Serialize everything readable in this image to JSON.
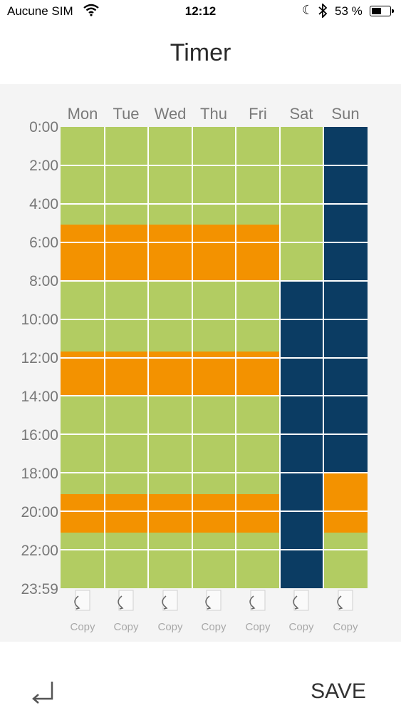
{
  "status_bar": {
    "carrier": "Aucune SIM",
    "time": "12:12",
    "battery_percent": "53 %",
    "battery_level": 0.53
  },
  "header": {
    "title": "Timer"
  },
  "schedule": {
    "days": [
      "Mon",
      "Tue",
      "Wed",
      "Thu",
      "Fri",
      "Sat",
      "Sun"
    ],
    "time_labels": [
      "0:00",
      "2:00",
      "4:00",
      "6:00",
      "8:00",
      "10:00",
      "12:00",
      "14:00",
      "16:00",
      "18:00",
      "20:00",
      "22:00",
      "23:59"
    ],
    "colors": {
      "comfort": "#b2cc62",
      "eco": "#f39200",
      "off": "#0b3c63"
    },
    "mode_blocks": [
      [
        {
          "start": 0,
          "end": 5.1,
          "mode": "comfort"
        },
        {
          "start": 5.1,
          "end": 8,
          "mode": "eco"
        },
        {
          "start": 8,
          "end": 11.7,
          "mode": "comfort"
        },
        {
          "start": 11.7,
          "end": 14,
          "mode": "eco"
        },
        {
          "start": 14,
          "end": 19.1,
          "mode": "comfort"
        },
        {
          "start": 19.1,
          "end": 21.1,
          "mode": "eco"
        },
        {
          "start": 21.1,
          "end": 24,
          "mode": "comfort"
        }
      ],
      [
        {
          "start": 0,
          "end": 5.1,
          "mode": "comfort"
        },
        {
          "start": 5.1,
          "end": 8,
          "mode": "eco"
        },
        {
          "start": 8,
          "end": 11.7,
          "mode": "comfort"
        },
        {
          "start": 11.7,
          "end": 14,
          "mode": "eco"
        },
        {
          "start": 14,
          "end": 19.1,
          "mode": "comfort"
        },
        {
          "start": 19.1,
          "end": 21.1,
          "mode": "eco"
        },
        {
          "start": 21.1,
          "end": 24,
          "mode": "comfort"
        }
      ],
      [
        {
          "start": 0,
          "end": 5.1,
          "mode": "comfort"
        },
        {
          "start": 5.1,
          "end": 8,
          "mode": "eco"
        },
        {
          "start": 8,
          "end": 11.7,
          "mode": "comfort"
        },
        {
          "start": 11.7,
          "end": 14,
          "mode": "eco"
        },
        {
          "start": 14,
          "end": 19.1,
          "mode": "comfort"
        },
        {
          "start": 19.1,
          "end": 21.1,
          "mode": "eco"
        },
        {
          "start": 21.1,
          "end": 24,
          "mode": "comfort"
        }
      ],
      [
        {
          "start": 0,
          "end": 5.1,
          "mode": "comfort"
        },
        {
          "start": 5.1,
          "end": 8,
          "mode": "eco"
        },
        {
          "start": 8,
          "end": 11.7,
          "mode": "comfort"
        },
        {
          "start": 11.7,
          "end": 14,
          "mode": "eco"
        },
        {
          "start": 14,
          "end": 19.1,
          "mode": "comfort"
        },
        {
          "start": 19.1,
          "end": 21.1,
          "mode": "eco"
        },
        {
          "start": 21.1,
          "end": 24,
          "mode": "comfort"
        }
      ],
      [
        {
          "start": 0,
          "end": 5.1,
          "mode": "comfort"
        },
        {
          "start": 5.1,
          "end": 8,
          "mode": "eco"
        },
        {
          "start": 8,
          "end": 11.7,
          "mode": "comfort"
        },
        {
          "start": 11.7,
          "end": 14,
          "mode": "eco"
        },
        {
          "start": 14,
          "end": 19.1,
          "mode": "comfort"
        },
        {
          "start": 19.1,
          "end": 21.1,
          "mode": "eco"
        },
        {
          "start": 21.1,
          "end": 24,
          "mode": "comfort"
        }
      ],
      [
        {
          "start": 0,
          "end": 8,
          "mode": "comfort"
        },
        {
          "start": 8,
          "end": 24,
          "mode": "off"
        }
      ],
      [
        {
          "start": 0,
          "end": 18,
          "mode": "off"
        },
        {
          "start": 18,
          "end": 21.1,
          "mode": "eco"
        },
        {
          "start": 21.1,
          "end": 24,
          "mode": "comfort"
        }
      ]
    ]
  },
  "copy_label": "Copy",
  "footer": {
    "save_label": "SAVE",
    "back_icon": "return-arrow-icon"
  }
}
